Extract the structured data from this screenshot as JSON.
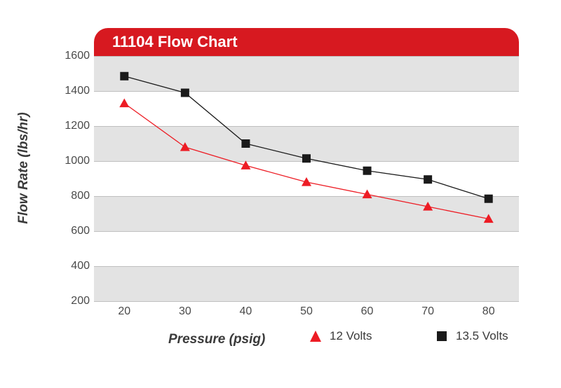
{
  "header": {
    "title": "11104 Flow Chart",
    "bg_color": "#d71920",
    "text_color": "#ffffff",
    "fontsize": 22
  },
  "chart": {
    "type": "line",
    "background_color": "#ffffff",
    "band_color": "#e3e3e3",
    "grid_color": "#bfbfbf",
    "tick_fontsize": 16,
    "tick_color": "#4a4a4a",
    "x": {
      "label": "Pressure (psig)",
      "min": 15,
      "max": 85,
      "ticks": [
        20,
        30,
        40,
        50,
        60,
        70,
        80
      ]
    },
    "y": {
      "label": "Flow Rate (lbs/hr)",
      "min": 200,
      "max": 1600,
      "ticks": [
        200,
        400,
        600,
        800,
        1000,
        1200,
        1400,
        1600
      ]
    },
    "label_fontsize": 19,
    "label_color": "#3a3a3a",
    "series": [
      {
        "name": "12 Volts",
        "color": "#ed1c24",
        "marker": "triangle",
        "marker_size": 14,
        "line_width": 1.3,
        "x": [
          20,
          30,
          40,
          50,
          60,
          70,
          80
        ],
        "y": [
          1330,
          1080,
          975,
          880,
          810,
          740,
          670
        ]
      },
      {
        "name": "13.5 Volts",
        "color": "#1a1a1a",
        "marker": "square",
        "marker_size": 12,
        "line_width": 1.3,
        "x": [
          20,
          30,
          40,
          50,
          60,
          70,
          80
        ],
        "y": [
          1485,
          1390,
          1100,
          1015,
          945,
          895,
          785
        ]
      }
    ],
    "legend": {
      "fontsize": 17,
      "positions": [
        380,
        560
      ]
    }
  }
}
